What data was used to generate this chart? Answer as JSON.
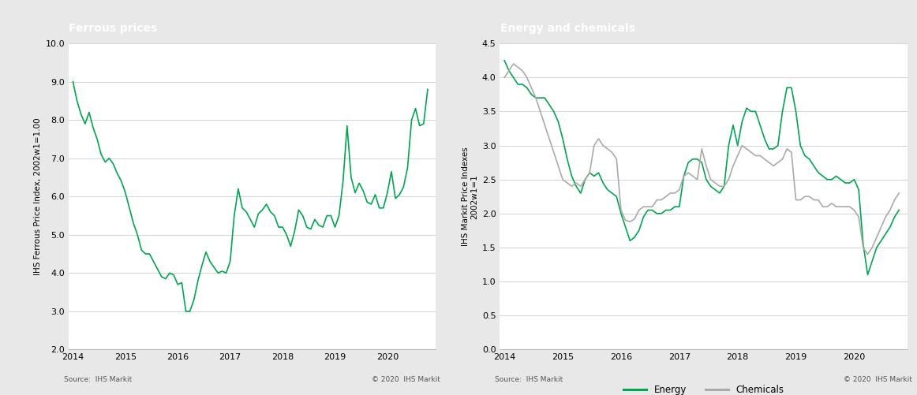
{
  "title1": "Ferrous prices",
  "title2": "Energy and chemicals",
  "ylabel1": "IHS Ferrous Price Index, 2002w1=1.00",
  "ylabel2": "IHS Markit Price Indexes\n2002w1=1",
  "source_left": "Source:  IHS Markit",
  "source_right": "Source:  IHS Markit",
  "copyright_left": "© 2020  IHS Markit",
  "copyright_right": "© 2020  IHS Markit",
  "header_color": "#808080",
  "green_color": "#00A651",
  "gray_line_color": "#AAAAAA",
  "bg_color": "#E8E8E8",
  "plot_bg_color": "#FFFFFF",
  "grid_color": "#CCCCCC",
  "ylim1": [
    2.0,
    10.0
  ],
  "yticks1": [
    2.0,
    3.0,
    4.0,
    5.0,
    6.0,
    7.0,
    8.0,
    9.0,
    10.0
  ],
  "ylim2": [
    0.0,
    4.5
  ],
  "yticks2": [
    0.0,
    0.5,
    1.0,
    1.5,
    2.0,
    2.5,
    3.0,
    3.5,
    4.0,
    4.5
  ],
  "xtick_years": [
    2014,
    2015,
    2016,
    2017,
    2018,
    2019,
    2020
  ],
  "legend2": [
    "Energy",
    "Chemicals"
  ],
  "ferrous_x": [
    2014.0,
    2014.077,
    2014.154,
    2014.231,
    2014.308,
    2014.385,
    2014.462,
    2014.538,
    2014.615,
    2014.692,
    2014.769,
    2014.846,
    2014.923,
    2015.0,
    2015.077,
    2015.154,
    2015.231,
    2015.308,
    2015.385,
    2015.462,
    2015.538,
    2015.615,
    2015.692,
    2015.769,
    2015.846,
    2015.923,
    2016.0,
    2016.077,
    2016.154,
    2016.231,
    2016.308,
    2016.385,
    2016.462,
    2016.538,
    2016.615,
    2016.692,
    2016.769,
    2016.846,
    2016.923,
    2017.0,
    2017.077,
    2017.154,
    2017.231,
    2017.308,
    2017.385,
    2017.462,
    2017.538,
    2017.615,
    2017.692,
    2017.769,
    2017.846,
    2017.923,
    2018.0,
    2018.077,
    2018.154,
    2018.231,
    2018.308,
    2018.385,
    2018.462,
    2018.538,
    2018.615,
    2018.692,
    2018.769,
    2018.846,
    2018.923,
    2019.0,
    2019.077,
    2019.154,
    2019.231,
    2019.308,
    2019.385,
    2019.462,
    2019.538,
    2019.615,
    2019.692,
    2019.769,
    2019.846,
    2019.923,
    2020.0,
    2020.077,
    2020.154,
    2020.231,
    2020.308,
    2020.385,
    2020.462,
    2020.538,
    2020.615,
    2020.692,
    2020.769
  ],
  "ferrous_y": [
    9.0,
    8.5,
    8.15,
    7.9,
    8.2,
    7.8,
    7.5,
    7.1,
    6.9,
    7.0,
    6.85,
    6.6,
    6.4,
    6.1,
    5.7,
    5.3,
    5.0,
    4.6,
    4.5,
    4.5,
    4.3,
    4.1,
    3.9,
    3.85,
    4.0,
    3.95,
    3.7,
    3.75,
    3.0,
    3.0,
    3.3,
    3.8,
    4.2,
    4.55,
    4.3,
    4.15,
    4.0,
    4.05,
    4.0,
    4.3,
    5.5,
    6.2,
    5.7,
    5.6,
    5.4,
    5.2,
    5.55,
    5.65,
    5.8,
    5.6,
    5.5,
    5.2,
    5.2,
    5.0,
    4.7,
    5.1,
    5.65,
    5.5,
    5.2,
    5.15,
    5.4,
    5.25,
    5.2,
    5.5,
    5.5,
    5.2,
    5.5,
    6.4,
    7.85,
    6.5,
    6.1,
    6.35,
    6.15,
    5.85,
    5.8,
    6.05,
    5.7,
    5.7,
    6.1,
    6.65,
    5.95,
    6.05,
    6.25,
    6.75,
    8.0,
    8.3,
    7.85,
    7.9,
    8.8
  ],
  "energy_x": [
    2014.0,
    2014.077,
    2014.154,
    2014.231,
    2014.308,
    2014.385,
    2014.462,
    2014.538,
    2014.615,
    2014.692,
    2014.769,
    2014.846,
    2014.923,
    2015.0,
    2015.077,
    2015.154,
    2015.231,
    2015.308,
    2015.385,
    2015.462,
    2015.538,
    2015.615,
    2015.692,
    2015.769,
    2015.846,
    2015.923,
    2016.0,
    2016.077,
    2016.154,
    2016.231,
    2016.308,
    2016.385,
    2016.462,
    2016.538,
    2016.615,
    2016.692,
    2016.769,
    2016.846,
    2016.923,
    2017.0,
    2017.077,
    2017.154,
    2017.231,
    2017.308,
    2017.385,
    2017.462,
    2017.538,
    2017.615,
    2017.692,
    2017.769,
    2017.846,
    2017.923,
    2018.0,
    2018.077,
    2018.154,
    2018.231,
    2018.308,
    2018.385,
    2018.462,
    2018.538,
    2018.615,
    2018.692,
    2018.769,
    2018.846,
    2018.923,
    2019.0,
    2019.077,
    2019.154,
    2019.231,
    2019.308,
    2019.385,
    2019.462,
    2019.538,
    2019.615,
    2019.692,
    2019.769,
    2019.846,
    2019.923,
    2020.0,
    2020.077,
    2020.154,
    2020.231,
    2020.308,
    2020.385,
    2020.462,
    2020.538,
    2020.615,
    2020.692,
    2020.769
  ],
  "energy_y": [
    4.25,
    4.1,
    4.0,
    3.9,
    3.9,
    3.85,
    3.75,
    3.7,
    3.7,
    3.7,
    3.6,
    3.5,
    3.35,
    3.1,
    2.8,
    2.55,
    2.4,
    2.3,
    2.5,
    2.6,
    2.55,
    2.6,
    2.45,
    2.35,
    2.3,
    2.25,
    2.0,
    1.8,
    1.6,
    1.65,
    1.75,
    1.95,
    2.05,
    2.05,
    2.0,
    2.0,
    2.05,
    2.05,
    2.1,
    2.1,
    2.55,
    2.75,
    2.8,
    2.8,
    2.75,
    2.5,
    2.4,
    2.35,
    2.3,
    2.4,
    3.0,
    3.3,
    3.0,
    3.35,
    3.55,
    3.5,
    3.5,
    3.3,
    3.1,
    2.95,
    2.95,
    3.0,
    3.5,
    3.85,
    3.85,
    3.5,
    3.0,
    2.85,
    2.8,
    2.7,
    2.6,
    2.55,
    2.5,
    2.5,
    2.55,
    2.5,
    2.45,
    2.45,
    2.5,
    2.35,
    1.55,
    1.1,
    1.3,
    1.5,
    1.6,
    1.7,
    1.8,
    1.95,
    2.05
  ],
  "chemicals_x": [
    2014.0,
    2014.077,
    2014.154,
    2014.231,
    2014.308,
    2014.385,
    2014.462,
    2014.538,
    2014.615,
    2014.692,
    2014.769,
    2014.846,
    2014.923,
    2015.0,
    2015.077,
    2015.154,
    2015.231,
    2015.308,
    2015.385,
    2015.462,
    2015.538,
    2015.615,
    2015.692,
    2015.769,
    2015.846,
    2015.923,
    2016.0,
    2016.077,
    2016.154,
    2016.231,
    2016.308,
    2016.385,
    2016.462,
    2016.538,
    2016.615,
    2016.692,
    2016.769,
    2016.846,
    2016.923,
    2017.0,
    2017.077,
    2017.154,
    2017.231,
    2017.308,
    2017.385,
    2017.462,
    2017.538,
    2017.615,
    2017.692,
    2017.769,
    2017.846,
    2017.923,
    2018.0,
    2018.077,
    2018.154,
    2018.231,
    2018.308,
    2018.385,
    2018.462,
    2018.538,
    2018.615,
    2018.692,
    2018.769,
    2018.846,
    2018.923,
    2019.0,
    2019.077,
    2019.154,
    2019.231,
    2019.308,
    2019.385,
    2019.462,
    2019.538,
    2019.615,
    2019.692,
    2019.769,
    2019.846,
    2019.923,
    2020.0,
    2020.077,
    2020.154,
    2020.231,
    2020.308,
    2020.385,
    2020.462,
    2020.538,
    2020.615,
    2020.692,
    2020.769
  ],
  "chemicals_y": [
    4.0,
    4.1,
    4.2,
    4.15,
    4.1,
    4.0,
    3.85,
    3.7,
    3.5,
    3.3,
    3.1,
    2.9,
    2.7,
    2.5,
    2.45,
    2.4,
    2.45,
    2.4,
    2.5,
    2.6,
    3.0,
    3.1,
    3.0,
    2.95,
    2.9,
    2.8,
    2.05,
    1.9,
    1.88,
    1.92,
    2.05,
    2.1,
    2.1,
    2.1,
    2.2,
    2.2,
    2.25,
    2.3,
    2.3,
    2.35,
    2.55,
    2.6,
    2.55,
    2.5,
    2.95,
    2.7,
    2.5,
    2.45,
    2.4,
    2.4,
    2.5,
    2.7,
    2.85,
    3.0,
    2.95,
    2.9,
    2.85,
    2.85,
    2.8,
    2.75,
    2.7,
    2.75,
    2.8,
    2.95,
    2.9,
    2.2,
    2.2,
    2.25,
    2.25,
    2.2,
    2.2,
    2.1,
    2.1,
    2.15,
    2.1,
    2.1,
    2.1,
    2.1,
    2.05,
    1.95,
    1.5,
    1.4,
    1.5,
    1.65,
    1.8,
    1.95,
    2.05,
    2.2,
    2.3
  ]
}
